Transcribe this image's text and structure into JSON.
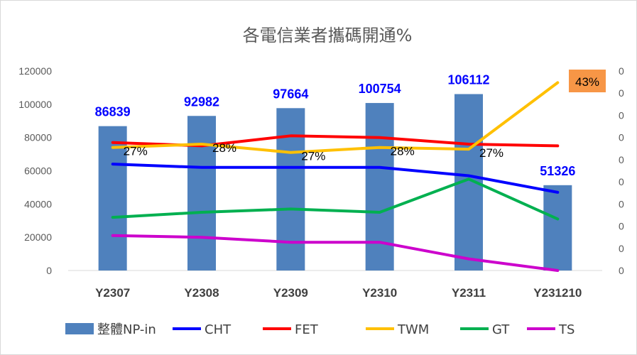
{
  "chart_data": {
    "type": "bar",
    "title": "各電信業者攜碼開通%",
    "categories": [
      "Y2307",
      "Y2308",
      "Y2309",
      "Y2310",
      "Y2311",
      "Y231210"
    ],
    "left_axis": {
      "min": 0,
      "max": 120000,
      "ticks": [
        "0",
        "20000",
        "40000",
        "60000",
        "80000",
        "100000",
        "120000"
      ]
    },
    "right_axis": {
      "ticks": [
        "0",
        "0",
        "0",
        "0",
        "0",
        "0",
        "0",
        "0",
        "0",
        "0"
      ]
    },
    "bar_series": {
      "name": "整體NP-in",
      "color": "#4f81bd",
      "values": [
        86839,
        92982,
        97664,
        100754,
        106112,
        51326
      ],
      "labels": [
        "86839",
        "92982",
        "97664",
        "100754",
        "106112",
        "51326"
      ]
    },
    "line_series": [
      {
        "name": "CHT",
        "color": "#0000ff",
        "values": [
          64000,
          62000,
          62000,
          62000,
          57000,
          47000
        ]
      },
      {
        "name": "FET",
        "color": "#ff0000",
        "values": [
          77000,
          75000,
          81000,
          80000,
          76000,
          75000
        ]
      },
      {
        "name": "TWM",
        "color": "#ffc000",
        "values": [
          74000,
          76000,
          71000,
          74000,
          73000,
          113000
        ],
        "labels": [
          "27%",
          "28%",
          "27%",
          "28%",
          "27%",
          "43%"
        ]
      },
      {
        "name": "GT",
        "color": "#00b050",
        "values": [
          32000,
          35000,
          37000,
          35000,
          55000,
          31000
        ]
      },
      {
        "name": "TS",
        "color": "#cc00cc",
        "values": [
          21000,
          20000,
          17000,
          17000,
          7000,
          0
        ]
      }
    ],
    "highlight_label_color": "#f79646",
    "legend_position": "bottom",
    "grid": false
  }
}
